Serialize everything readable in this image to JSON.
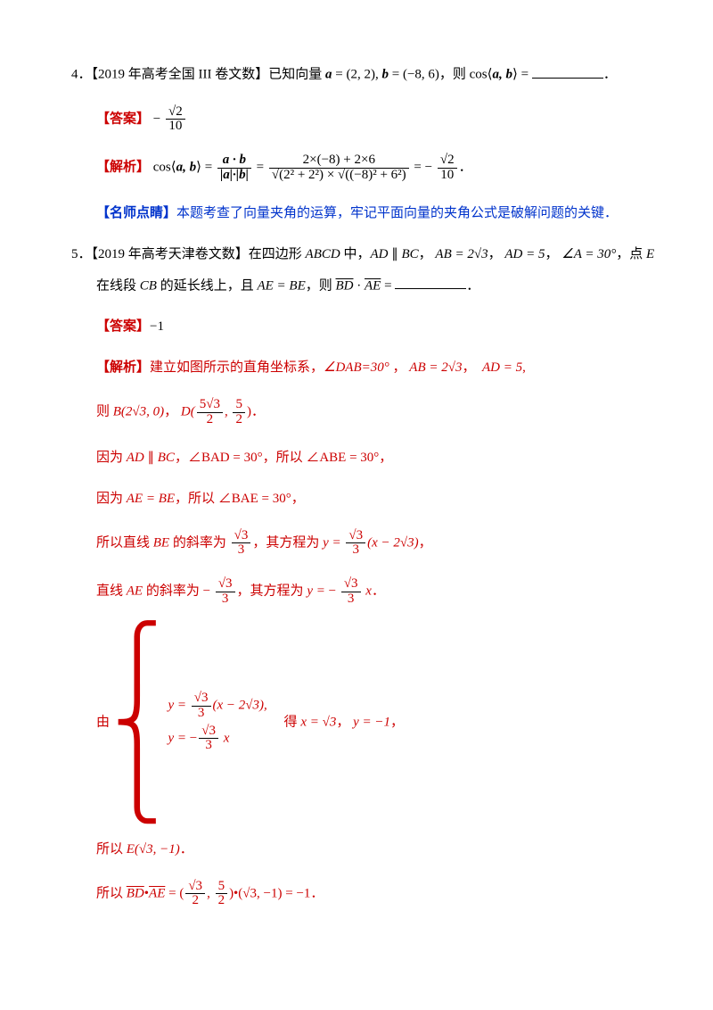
{
  "q4": {
    "number": "4．",
    "source": "【2019 年高考全国 III 卷文数】",
    "stem_a": "已知向量 ",
    "vec_a": "a",
    "eq1": " = (2, 2), ",
    "vec_b": "b",
    "eq2": " = (−8, 6)，则 cos",
    "ab": "a, b",
    "eq3": " = ",
    "period": "．",
    "ans_label": "【答案】",
    "ans_num": "√2",
    "ans_den": "10",
    "sol_label": "【解析】",
    "sol_pre": "cos",
    "frac1_num": "a · b",
    "frac1_den": "|a|·|b|",
    "frac2_num": "2×(−8) + 2×6",
    "frac2_den_a": "√(2² + 2²)",
    "frac2_den_mul": " × ",
    "frac2_den_b": "√((−8)² + 6²)",
    "sol_eq": " = − ",
    "sol_period": "．",
    "comm_label": "【名师点睛】",
    "comm_text": "本题考查了向量夹角的运算，牢记平面向量的夹角公式是破解问题的关键．"
  },
  "q5": {
    "number": "5．",
    "source": "【2019 年高考天津卷文数】",
    "stem1": "在四边形 ",
    "abcd": "ABCD",
    "stem2": " 中，",
    "ad": "AD",
    "para": " ∥ ",
    "bc": "BC",
    "comma": "，",
    "ab_eq": "AB = 2√3",
    "ad_eq": "AD = 5",
    "angleA": "∠A = 30°",
    "stem3": "，点 ",
    "E": "E",
    "stem_line2a": "在线段 ",
    "cb": "CB",
    "stem_line2b": " 的延长线上，且 ",
    "ae_be": "AE = BE",
    "stem_line2c": "，则 ",
    "bd": "BD",
    "dot": " · ",
    "ae": "AE",
    "stem_line2d": " = ",
    "ans_label": "【答案】",
    "ans_val": "−1",
    "sol_label": "【解析】",
    "sol1a": "建立如图所示的直角坐标系，",
    "dab_angle": "∠DAB=30°",
    "sol1b": " ，",
    "B_label": "则 ",
    "B_val": "B(2√3, 0)",
    "D_label": "，",
    "D_pre": "D(",
    "D_frac1_num": "5√3",
    "D_frac1_den": "2",
    "D_mid": ", ",
    "D_frac2_num": "5",
    "D_frac2_den": "2",
    "D_post": ")．",
    "sol3a": "因为 ",
    "sol3b": "，∠BAD = 30°，所以 ∠ABE = 30°，",
    "sol4a": "因为 ",
    "sol4b": "，所以 ∠BAE = 30°，",
    "sol5a": "所以直线 ",
    "sol5b": " 的斜率为 ",
    "k1_num": "√3",
    "k1_den": "3",
    "sol5c": "，其方程为 ",
    "eq_y": "y = ",
    "eq5_tail": "(x − 2√3)",
    "sol5d": "，",
    "sol6a": "直线 ",
    "sol6b": " 的斜率为 − ",
    "sol6c": "，其方程为 ",
    "eq6_mid": " x",
    "sol6d": "．",
    "sol7a": "由",
    "sys_r1a": "y = ",
    "sys_r1b": "(x − 2√3),",
    "sys_r2_tail": " x",
    "sol7b": "得 ",
    "sol7c": "x = √3",
    "sol7d": "，",
    "sol7e": "y = −1",
    "sol7f": "，",
    "sol8a": "所以 ",
    "E_val": "E(√3, −1)",
    "sol8b": "．",
    "sol9a": "所以 ",
    "sol9_eq1": " = (",
    "sol9_n1": "√3",
    "sol9_d1": "2",
    "sol9_mid": ", ",
    "sol9_n2": "5",
    "sol9_d2": "2",
    "sol9_eq2": ")•(√3, −1) = −1",
    "sol9b": "．"
  }
}
